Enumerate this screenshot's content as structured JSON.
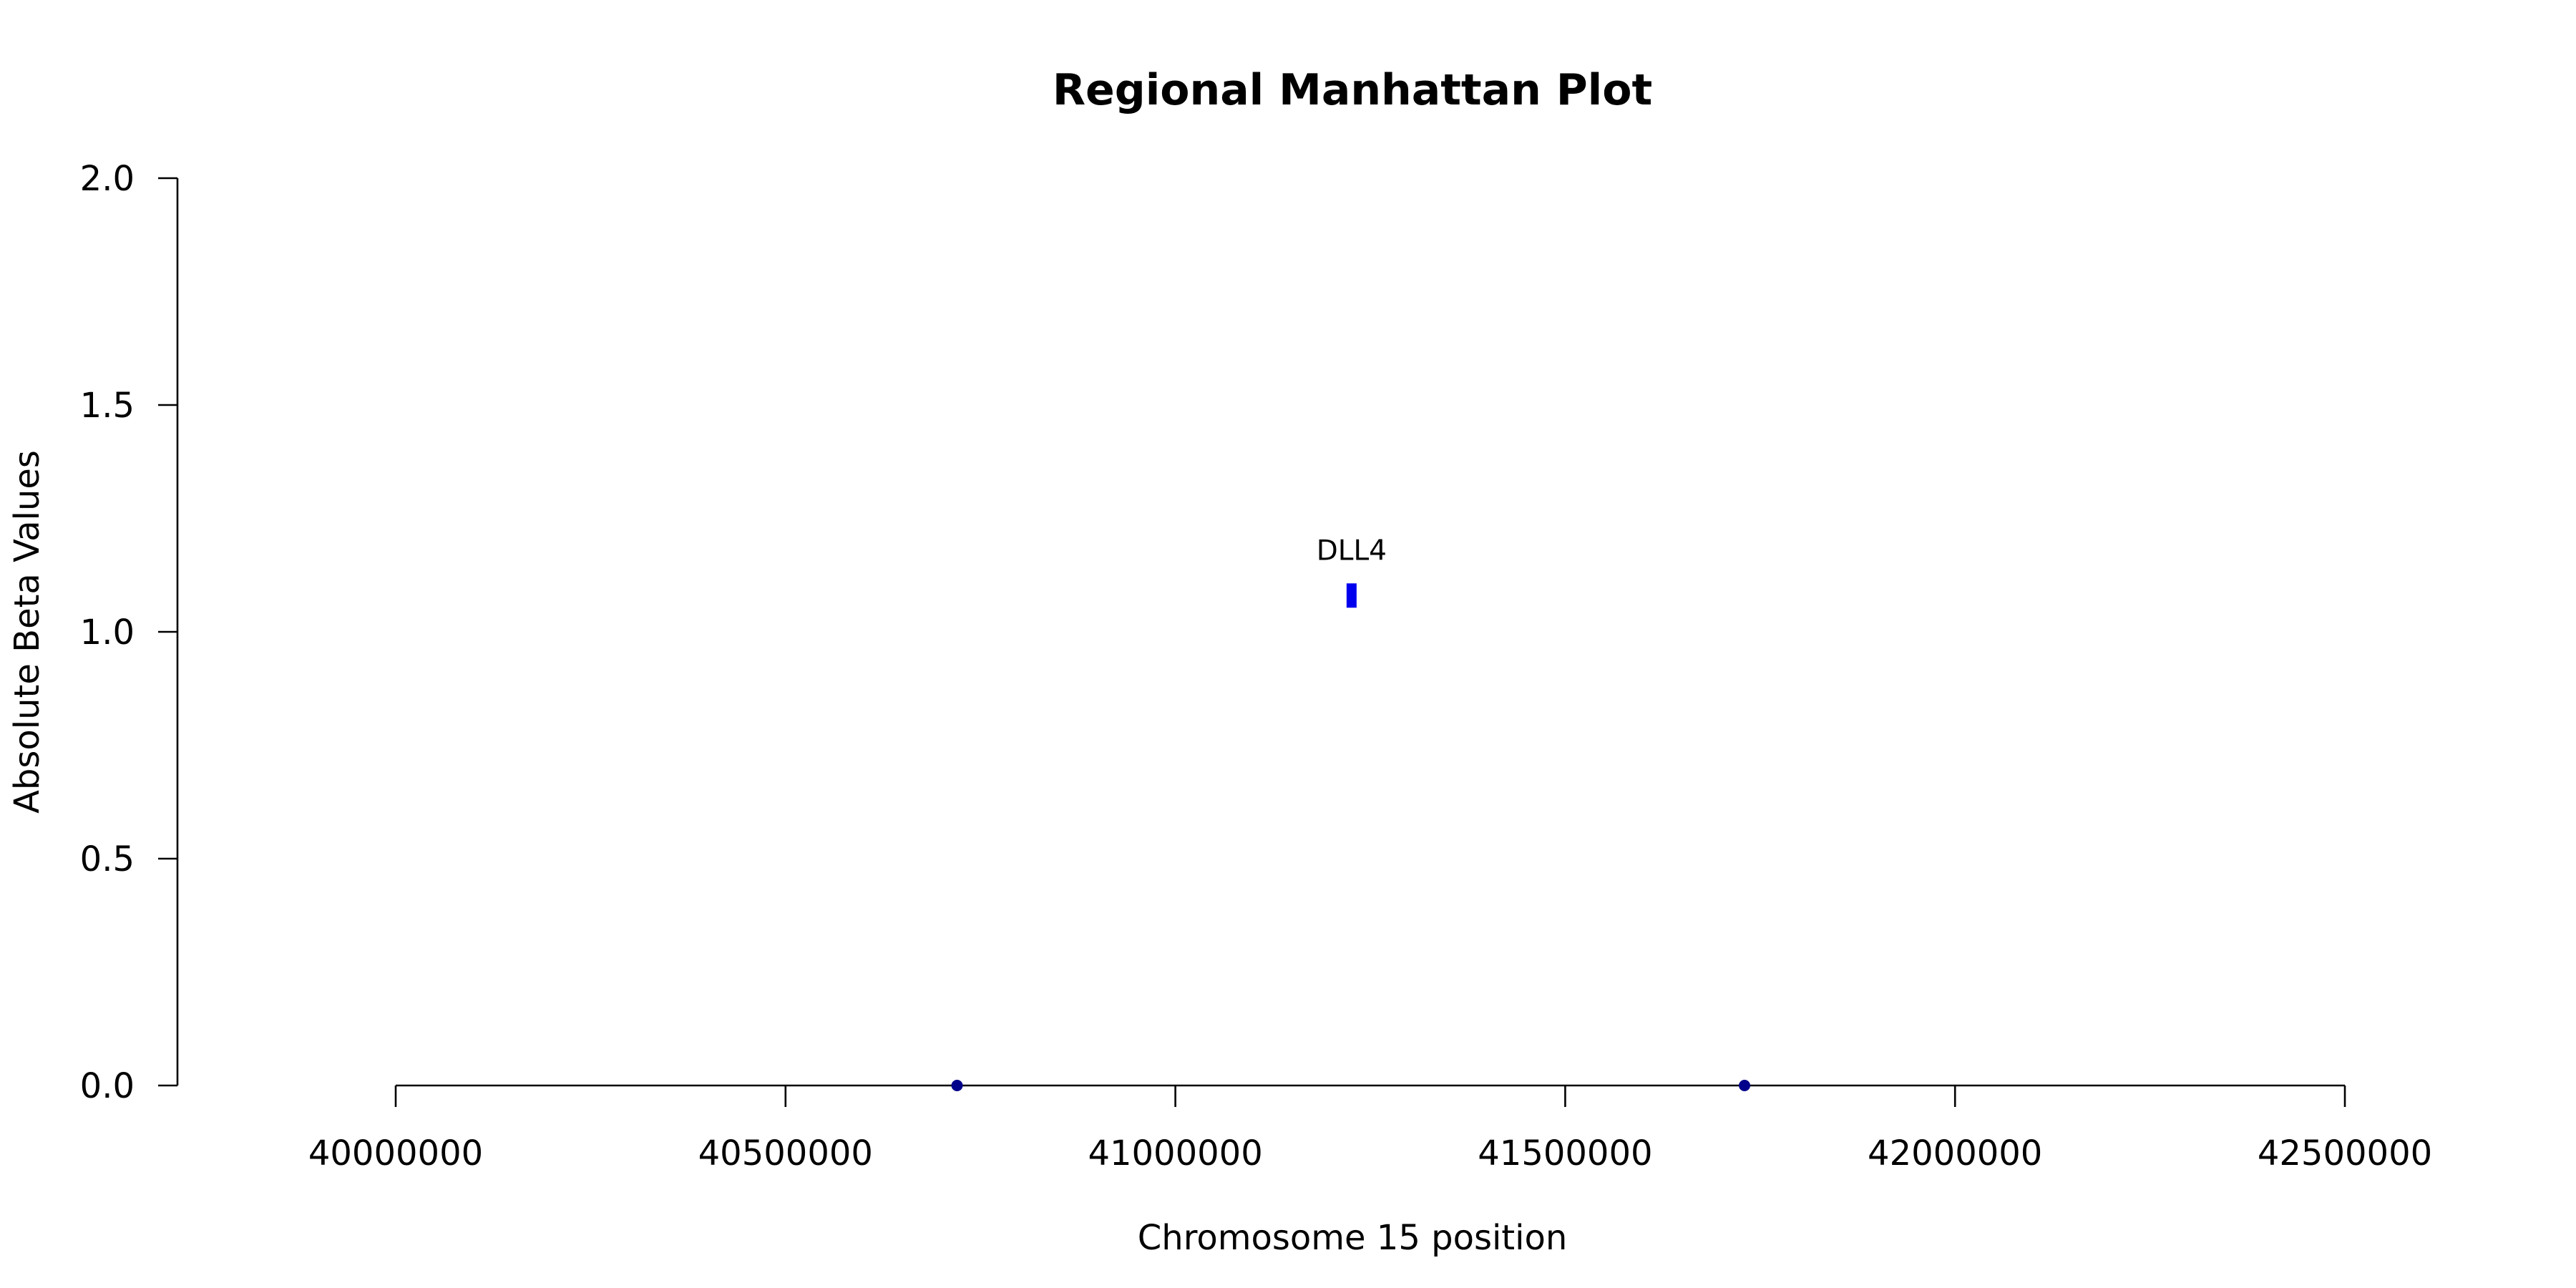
{
  "chart_data": {
    "type": "scatter",
    "title": "Regional Manhattan Plot",
    "xlabel": "Chromosome 15 position",
    "ylabel": "Absolute Beta Values",
    "xlim": [
      40000000,
      42500000
    ],
    "ylim": [
      0,
      2
    ],
    "x_ticks": [
      40000000,
      40500000,
      41000000,
      41500000,
      42000000,
      42500000
    ],
    "y_ticks": [
      0.0,
      0.5,
      1.0,
      1.5,
      2.0
    ],
    "x_tick_labels": [
      "40000000",
      "40500000",
      "41000000",
      "41500000",
      "42000000",
      "42500000"
    ],
    "y_tick_labels": [
      "0.0",
      "0.5",
      "1.0",
      "1.5",
      "2.0"
    ],
    "grid": false,
    "series": [
      {
        "points": [
          {
            "x": 40720000,
            "y": 0.0,
            "color": "#00008b",
            "marker": "circle"
          },
          {
            "x": 41730000,
            "y": 0.0,
            "color": "#00008b",
            "marker": "circle"
          },
          {
            "x": 41226000,
            "y": 1.08,
            "color": "#0000ee",
            "marker": "bar",
            "label": "DLL4"
          }
        ]
      }
    ]
  }
}
